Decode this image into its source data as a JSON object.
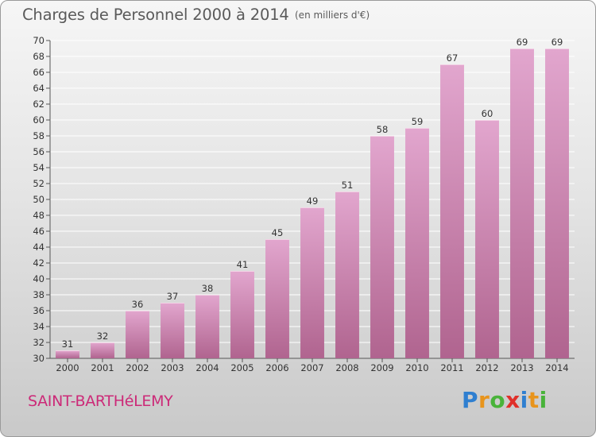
{
  "header": {
    "title": "Charges de Personnel 2000 à 2014",
    "subtitle": "(en milliers d'€)"
  },
  "footer": {
    "place": "SAINT-BARTHéLEMY",
    "logo_letters": [
      "P",
      "r",
      "o",
      "x",
      "i",
      "t",
      "i"
    ],
    "logo_colors": [
      "#2f7fd0",
      "#e8941c",
      "#49b33a",
      "#e0302a",
      "#2f7fd0",
      "#e8941c",
      "#49b33a"
    ]
  },
  "colors": {
    "bar_top": "#e2a6ce",
    "bar_bottom": "#b0648f",
    "grid": "#ffffff",
    "axis_text": "#333333"
  },
  "chart_data": {
    "type": "bar",
    "title": "Charges de Personnel 2000 à 2014",
    "subtitle": "(en milliers d'€)",
    "xlabel": "",
    "ylabel": "",
    "categories": [
      "2000",
      "2001",
      "2002",
      "2003",
      "2004",
      "2005",
      "2006",
      "2007",
      "2008",
      "2009",
      "2010",
      "2011",
      "2012",
      "2013",
      "2014"
    ],
    "values": [
      31,
      32,
      36,
      37,
      38,
      41,
      45,
      49,
      51,
      58,
      59,
      67,
      60,
      69,
      69
    ],
    "ylim": [
      30,
      70
    ],
    "ytick_step": 2,
    "grid": true,
    "legend": "none"
  }
}
